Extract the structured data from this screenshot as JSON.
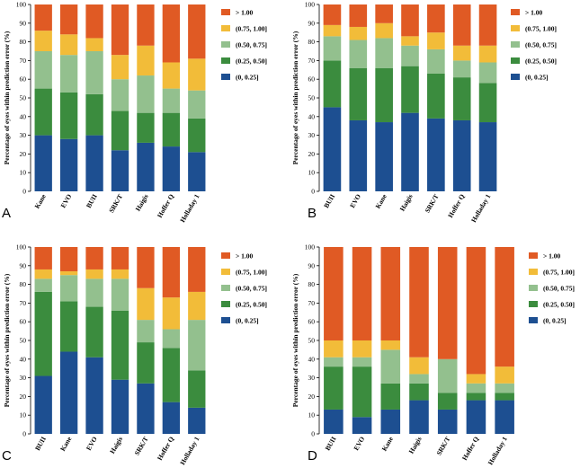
{
  "colors": {
    "(0, 0.25]": "#1d4f91",
    "(0.25, 0.50]": "#3b8c3e",
    "(0.50, 0.75]": "#93c08e",
    "(0.75, 1.00]": "#f2bc39",
    "> 1.00": "#e05a24"
  },
  "chart_data": [
    {
      "type": "bar",
      "stacked": true,
      "panel_label": "A",
      "ylabel": "Percentage of eyes within prediction error (%)",
      "ylim": [
        0,
        100
      ],
      "yticks": [
        0,
        10,
        20,
        30,
        40,
        50,
        60,
        70,
        80,
        90,
        100
      ],
      "legend_title_order": [
        "> 1.00",
        "(0.75, 1.00]",
        "(0.50, 0.75]",
        "(0.25, 0.50]",
        "(0, 0.25]"
      ],
      "legend_position": "right",
      "categories": [
        "Kane",
        "EVO",
        "BUII",
        "SRK/T",
        "Haigis",
        "Hoffer Q",
        "Holladay 1"
      ],
      "series": [
        {
          "name": "(0, 0.25]",
          "values": [
            30,
            28,
            30,
            22,
            26,
            24,
            21
          ]
        },
        {
          "name": "(0.25, 0.50]",
          "values": [
            25,
            25,
            22,
            21,
            16,
            18,
            18
          ]
        },
        {
          "name": "(0.50, 0.75]",
          "values": [
            20,
            20,
            23,
            17,
            20,
            13,
            15
          ]
        },
        {
          "name": "(0.75, 1.00]",
          "values": [
            11,
            11,
            7,
            13,
            16,
            14,
            17
          ]
        },
        {
          "name": "> 1.00",
          "values": [
            14,
            16,
            18,
            27,
            22,
            31,
            29
          ]
        }
      ]
    },
    {
      "type": "bar",
      "stacked": true,
      "panel_label": "B",
      "ylabel": "Percentage of eyes within prediction error (%)",
      "ylim": [
        0,
        100
      ],
      "yticks": [
        0,
        10,
        20,
        30,
        40,
        50,
        60,
        70,
        80,
        90,
        100
      ],
      "legend_title_order": [
        "> 1.00",
        "(0.75, 1.00]",
        "(0.50, 0.75]",
        "(0.25, 0.50]",
        "(0, 0.25]"
      ],
      "legend_position": "right",
      "categories": [
        "BUII",
        "EVO",
        "Kane",
        "Haigis",
        "SRK/T",
        "Hoffer Q",
        "Holladay 1"
      ],
      "series": [
        {
          "name": "(0, 0.25]",
          "values": [
            45,
            38,
            37,
            42,
            39,
            38,
            37
          ]
        },
        {
          "name": "(0.25, 0.50]",
          "values": [
            25,
            28,
            29,
            25,
            24,
            23,
            21
          ]
        },
        {
          "name": "(0.50, 0.75]",
          "values": [
            13,
            15,
            16,
            11,
            13,
            9,
            11
          ]
        },
        {
          "name": "(0.75, 1.00]",
          "values": [
            6,
            7,
            8,
            5,
            9,
            8,
            9
          ]
        },
        {
          "name": "> 1.00",
          "values": [
            11,
            12,
            10,
            17,
            15,
            22,
            22
          ]
        }
      ]
    },
    {
      "type": "bar",
      "stacked": true,
      "panel_label": "C",
      "ylabel": "Percentage of eyes within prediction error (%)",
      "ylim": [
        0,
        100
      ],
      "yticks": [
        0,
        10,
        20,
        30,
        40,
        50,
        60,
        70,
        80,
        90,
        100
      ],
      "legend_title_order": [
        "> 1.00",
        "(0.75, 1.00]",
        "(0.50, 0.75]",
        "(0.25, 0.50]",
        "(0, 0.25]"
      ],
      "legend_position": "right",
      "categories": [
        "BUII",
        "Kane",
        "EVO",
        "Haigis",
        "SRK/T",
        "Hoffer Q",
        "Holladay 1"
      ],
      "series": [
        {
          "name": "(0, 0.25]",
          "values": [
            31,
            44,
            41,
            29,
            27,
            17,
            14
          ]
        },
        {
          "name": "(0.25, 0.50]",
          "values": [
            45,
            27,
            27,
            37,
            22,
            29,
            20
          ]
        },
        {
          "name": "(0.50, 0.75]",
          "values": [
            7,
            14,
            15,
            17,
            12,
            10,
            27
          ]
        },
        {
          "name": "(0.75, 1.00]",
          "values": [
            5,
            2,
            5,
            5,
            17,
            17,
            15
          ]
        },
        {
          "name": "> 1.00",
          "values": [
            12,
            13,
            12,
            12,
            22,
            27,
            24
          ]
        }
      ]
    },
    {
      "type": "bar",
      "stacked": true,
      "panel_label": "D",
      "ylabel": "Percentage of eyes within prediction error (%)",
      "ylim": [
        0,
        100
      ],
      "yticks": [
        0,
        10,
        20,
        30,
        40,
        50,
        60,
        70,
        80,
        90,
        100
      ],
      "legend_title_order": [
        "> 1.00",
        "(0.75, 1.00]",
        "(0.50, 0.75]",
        "(0.25, 0.50]",
        "(0, 0.25]"
      ],
      "legend_position": "right",
      "categories": [
        "BUII",
        "EVO",
        "Kane",
        "Haigis",
        "SRK/T",
        "Hoffer Q",
        "Holladay 1"
      ],
      "series": [
        {
          "name": "(0, 0.25]",
          "values": [
            13,
            9,
            13,
            18,
            13,
            18,
            18
          ]
        },
        {
          "name": "(0.25, 0.50]",
          "values": [
            23,
            27,
            14,
            9,
            9,
            4,
            4
          ]
        },
        {
          "name": "(0.50, 0.75]",
          "values": [
            5,
            5,
            18,
            5,
            18,
            5,
            5
          ]
        },
        {
          "name": "(0.75, 1.00]",
          "values": [
            9,
            9,
            5,
            9,
            0,
            5,
            9
          ]
        },
        {
          "name": "> 1.00",
          "values": [
            50,
            50,
            50,
            59,
            60,
            68,
            64
          ]
        }
      ]
    }
  ]
}
